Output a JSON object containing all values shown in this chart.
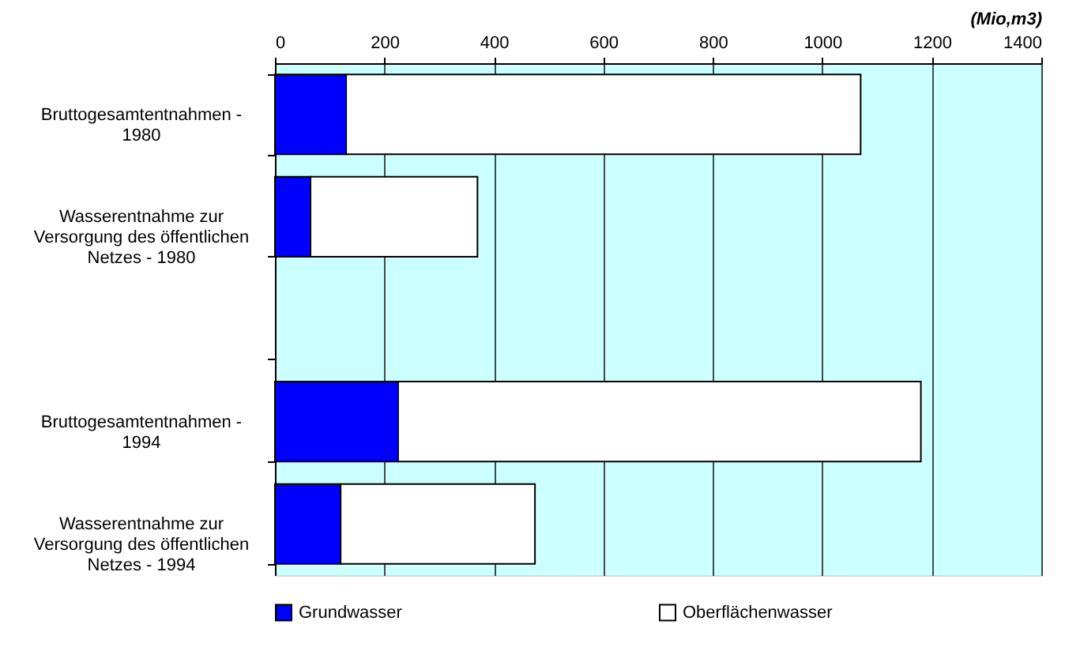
{
  "chart_data": {
    "type": "bar",
    "orientation": "horizontal",
    "stacked": true,
    "xlabel": "(Mio,m3)",
    "categories": [
      "Bruttogesamtentnahmen -\n1980",
      "Wasserentnahme zur\nVersorgung des öffentlichen\nNetzes - 1980",
      null,
      "Bruttogesamtentnahmen -\n1994",
      "Wasserentnahme zur\nVersorgung des öffentlichen\nNetzes - 1994"
    ],
    "series": [
      {
        "name": "Grundwasser",
        "color": "#0000ff",
        "values": [
          130,
          65,
          null,
          225,
          120
        ]
      },
      {
        "name": "Oberflächenwasser",
        "color": "#ffffff",
        "values": [
          940,
          305,
          null,
          955,
          355
        ]
      }
    ],
    "xlim": [
      0,
      1400
    ],
    "xticks": [
      0,
      200,
      400,
      600,
      800,
      1000,
      1200,
      1400
    ],
    "grid": "x",
    "legend": "bottom"
  }
}
